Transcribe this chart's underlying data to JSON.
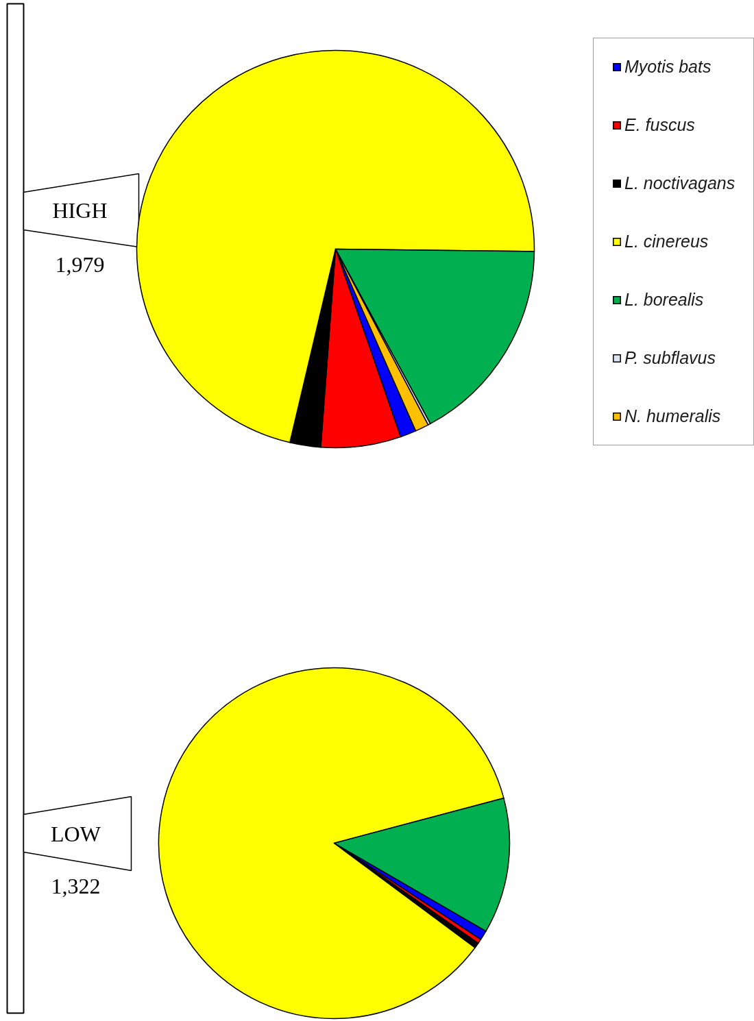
{
  "chart_data": {
    "type": "pie",
    "categories": [
      "Myotis bats",
      "E. fuscus",
      "L. noctivagans",
      "L. cinereus",
      "L. borealis",
      "P. subflavus",
      "N. humeralis"
    ],
    "colors": [
      "#0000ff",
      "#ff0000",
      "#000000",
      "#ffff00",
      "#00b050",
      "#dce6f2",
      "#ffc000"
    ],
    "series": [
      {
        "name": "HIGH",
        "values": [
          1.3,
          6.5,
          2.5,
          71.5,
          16.9,
          0.2,
          1.1
        ]
      },
      {
        "name": "LOW",
        "values": [
          0.9,
          0.4,
          0.5,
          85.7,
          12.5,
          0,
          0
        ]
      }
    ],
    "annotations": [
      "1,979",
      "1,322"
    ],
    "legend": "top right"
  }
}
